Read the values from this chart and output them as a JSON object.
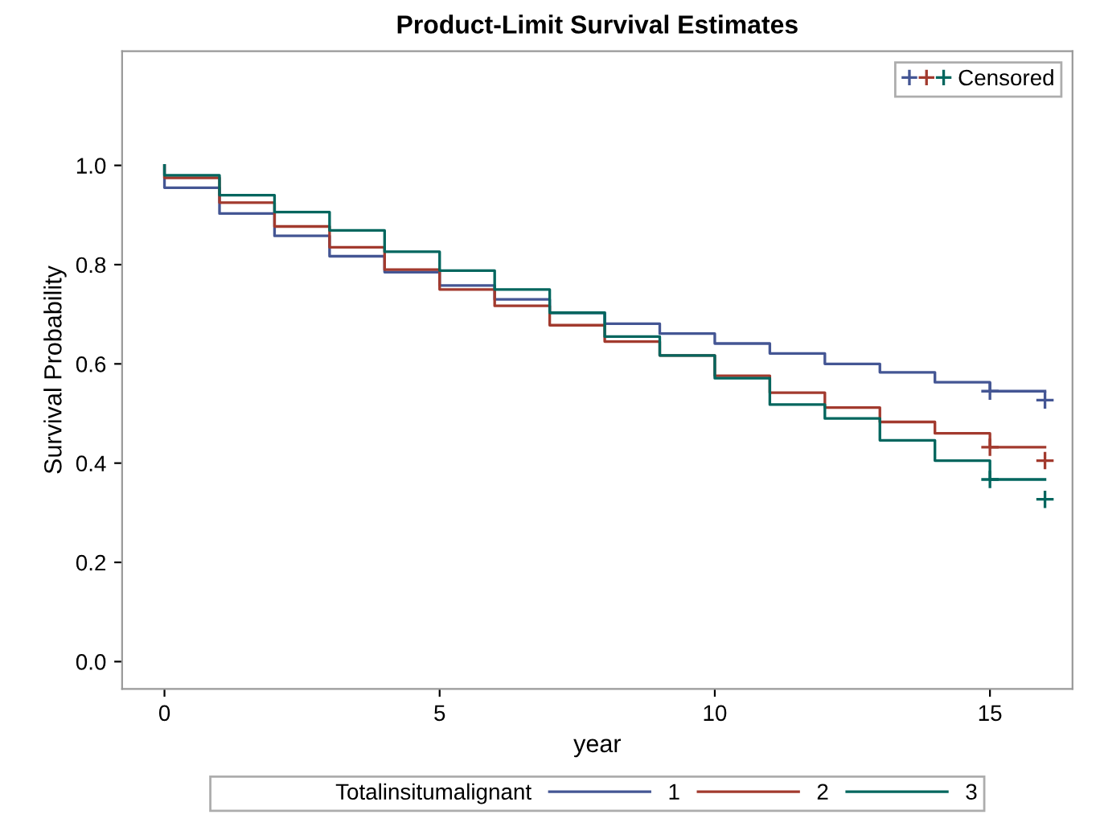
{
  "chart_data": {
    "type": "step",
    "title": "Product-Limit Survival Estimates",
    "xlabel": "year",
    "ylabel": "Survival Probability",
    "legend_title": "Totalinsitumalignant",
    "legend": "bottom",
    "xlim": [
      -0.77,
      16.5
    ],
    "xticks": [
      0,
      5,
      10,
      15
    ],
    "ylim": [
      -0.055,
      1.23
    ],
    "yticks": [
      {
        "value": 0,
        "label": "0.0"
      },
      0.2,
      0.4,
      0.6,
      0.8,
      {
        "value": 1,
        "label": "1.0"
      }
    ],
    "grid": false,
    "series": [
      {
        "name": "1",
        "color": "#445694",
        "x": [
          0,
          0,
          1,
          2,
          3,
          4,
          5,
          6,
          7,
          8,
          9,
          10,
          11,
          12,
          13,
          14,
          15,
          16
        ],
        "values": [
          1.0,
          0.955,
          0.903,
          0.858,
          0.817,
          0.785,
          0.758,
          0.73,
          0.703,
          0.681,
          0.661,
          0.641,
          0.621,
          0.6,
          0.583,
          0.563,
          0.545,
          0.545
        ]
      },
      {
        "name": "2",
        "color": "#a23a2e",
        "x": [
          0,
          0,
          1,
          2,
          3,
          4,
          5,
          6,
          7,
          8,
          9,
          10,
          11,
          12,
          13,
          14,
          15,
          16
        ],
        "values": [
          1.0,
          0.975,
          0.925,
          0.877,
          0.835,
          0.79,
          0.75,
          0.717,
          0.678,
          0.645,
          0.617,
          0.576,
          0.542,
          0.512,
          0.483,
          0.46,
          0.432,
          0.432
        ]
      },
      {
        "name": "3",
        "color": "#01665e",
        "x": [
          0,
          0,
          1,
          2,
          3,
          4,
          5,
          6,
          7,
          8,
          9,
          10,
          11,
          12,
          13,
          14,
          15,
          16
        ],
        "values": [
          1.0,
          0.98,
          0.94,
          0.906,
          0.869,
          0.826,
          0.788,
          0.75,
          0.703,
          0.655,
          0.617,
          0.571,
          0.518,
          0.49,
          0.446,
          0.405,
          0.367,
          0.367
        ]
      },
      {
        "name": "Censored",
        "type": "scatter",
        "marker": "cross",
        "x": [
          15,
          16,
          15,
          16,
          15,
          16
        ],
        "values": [
          0.545,
          0.527,
          0.432,
          0.405,
          0.367,
          0.327
        ],
        "colors": [
          "#445694",
          "#445694",
          "#a23a2e",
          "#a23a2e",
          "#01665e",
          "#01665e"
        ]
      }
    ]
  }
}
